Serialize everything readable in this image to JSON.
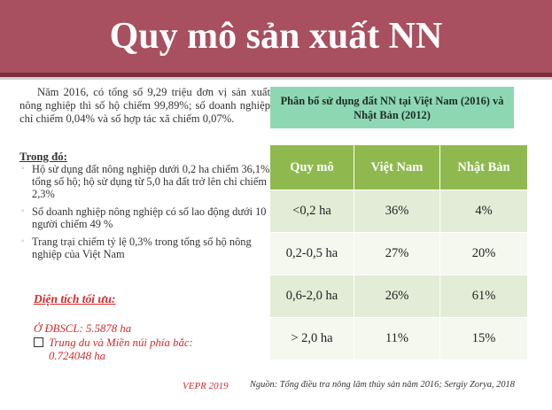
{
  "slide": {
    "title": "Quy mô sản xuất NN",
    "accent_color": "#a8505f",
    "intro_paragraph": "Năm 2016, có tổng số 9,29 triệu đơn vị sản xuất nông nghiệp thì số hộ  chiếm 99,89%; số doanh nghiệp chỉ chiếm 0,04% và số hợp tác xã chiếm 0,07%.",
    "details_heading": "Trong đó:",
    "bullets": [
      "Hộ sử dụng đất nông nghiệp dưới 0,2 ha chiếm 36,1% tổng số hộ; hộ sử dụng từ 5,0 ha đất trở lên chỉ chiếm 2,3%",
      "Số doanh nghiệp nông nghiệp có số lao động dưới 10 người chiếm 49 %",
      "Trang trại chiếm tỷ lệ 0,3% trong tổng số hộ nông nghiệp của Việt Nam"
    ],
    "optimal_heading": "Diện tích tối ưu:",
    "mekong_line": "Ở ĐBSCL: 5.5878 ha",
    "midland_line1": "Trung du và Miền núi phía bắc:",
    "midland_line2": "0.724048 ha",
    "vepr": "VEPR 2019",
    "source": "Nguồn: Tổng điều tra nông lâm thủy sản năm 2016; Sergiy Zorya, 2018"
  },
  "table": {
    "caption": "Phân bổ sử dụng đất NN tại Việt Nam (2016) và Nhật Bản (2012)",
    "headers": [
      "Quy mô",
      "Việt Nam",
      "Nhật Bản"
    ],
    "rows": [
      [
        "<0,2 ha",
        "36%",
        "4%"
      ],
      [
        "0,2-0,5 ha",
        "27%",
        "20%"
      ],
      [
        "0,6-2,0 ha",
        "26%",
        "61%"
      ],
      [
        "> 2,0 ha",
        "11%",
        "15%"
      ]
    ],
    "header_color": "#8fb94e",
    "caption_color": "#8dd8b3",
    "highlight_color": "#e23131"
  }
}
